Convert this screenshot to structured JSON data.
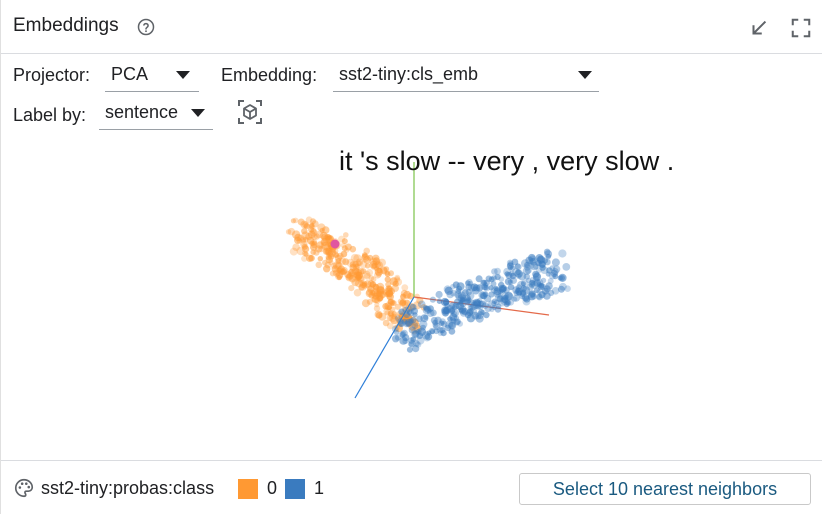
{
  "header": {
    "title": "Embeddings",
    "icons": [
      "help-icon",
      "minimize-icon",
      "fullscreen-icon"
    ]
  },
  "controls": {
    "projector_label": "Projector:",
    "projector_value": "PCA",
    "embedding_label": "Embedding:",
    "embedding_value": "sst2-tiny:cls_emb",
    "label_by_label": "Label by:",
    "label_by_value": "sentence"
  },
  "plot": {
    "selected_point_label": "it 's slow -- very , very slow .",
    "colors": {
      "class_0": "#ff9933",
      "class_1": "#3a7bbf",
      "selected": "#e056a0",
      "axis_x": "#e46a4a",
      "axis_y": "#7cc34a",
      "axis_z": "#2f7fd8"
    }
  },
  "footer": {
    "color_by_label": "sst2-tiny:probas:class",
    "legend": [
      {
        "label": "0",
        "color": "#ff9933"
      },
      {
        "label": "1",
        "color": "#3a7bbf"
      }
    ],
    "neighbors_button_label": "Select 10 nearest neighbors"
  }
}
